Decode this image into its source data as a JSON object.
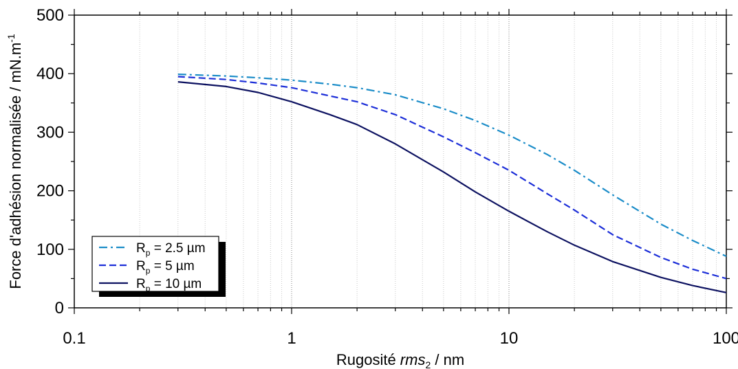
{
  "chart_data": {
    "type": "line",
    "title": "",
    "xlabel": {
      "main": "Rugosité ",
      "italic": "rms",
      "sub": "2",
      "tail": " / nm"
    },
    "ylabel": {
      "main": "Force d'adhésion normalisée / mN.m",
      "sup": "-1"
    },
    "xscale": "log",
    "xlim": [
      0.1,
      100
    ],
    "ylim": [
      0,
      500
    ],
    "x_ticks": [
      0.1,
      1,
      10,
      100
    ],
    "x_tick_labels": [
      "0.1",
      "1",
      "10",
      "100"
    ],
    "y_ticks": [
      0,
      100,
      200,
      300,
      400,
      500
    ],
    "y_tick_labels": [
      "0",
      "100",
      "200",
      "300",
      "400",
      "500"
    ],
    "grid": "vertical, log minor dotted",
    "legend_position": "bottom-left",
    "series": [
      {
        "name": {
          "main": "R",
          "sub": "p",
          "tail": " = 2.5 µm"
        },
        "color": "#1a8cc8",
        "style": "dash-dot",
        "x": [
          0.3,
          0.5,
          0.7,
          1,
          1.5,
          2,
          3,
          5,
          7,
          10,
          15,
          20,
          30,
          50,
          70,
          100
        ],
        "y": [
          399,
          396,
          393,
          389,
          382,
          376,
          364,
          340,
          320,
          295,
          262,
          235,
          193,
          143,
          115,
          88
        ]
      },
      {
        "name": {
          "main": "R",
          "sub": "p",
          "tail": " = 5 µm"
        },
        "color": "#1c2ed8",
        "style": "dashed",
        "x": [
          0.3,
          0.5,
          0.7,
          1,
          1.5,
          2,
          3,
          5,
          7,
          10,
          15,
          20,
          30,
          50,
          70,
          100
        ],
        "y": [
          395,
          390,
          384,
          376,
          362,
          352,
          330,
          292,
          265,
          235,
          195,
          167,
          125,
          86,
          66,
          50
        ]
      },
      {
        "name": {
          "main": "R",
          "sub": "p",
          "tail": " = 10 µm"
        },
        "color": "#0c1160",
        "style": "solid",
        "x": [
          0.3,
          0.5,
          0.7,
          1,
          1.5,
          2,
          3,
          5,
          7,
          10,
          15,
          20,
          30,
          50,
          70,
          100
        ],
        "y": [
          386,
          378,
          368,
          352,
          330,
          313,
          280,
          232,
          198,
          165,
          130,
          107,
          79,
          52,
          38,
          26
        ]
      }
    ],
    "colors": {
      "grid_minor": "#c8c8c8",
      "grid_major": "#808080",
      "axis": "#000000"
    }
  }
}
